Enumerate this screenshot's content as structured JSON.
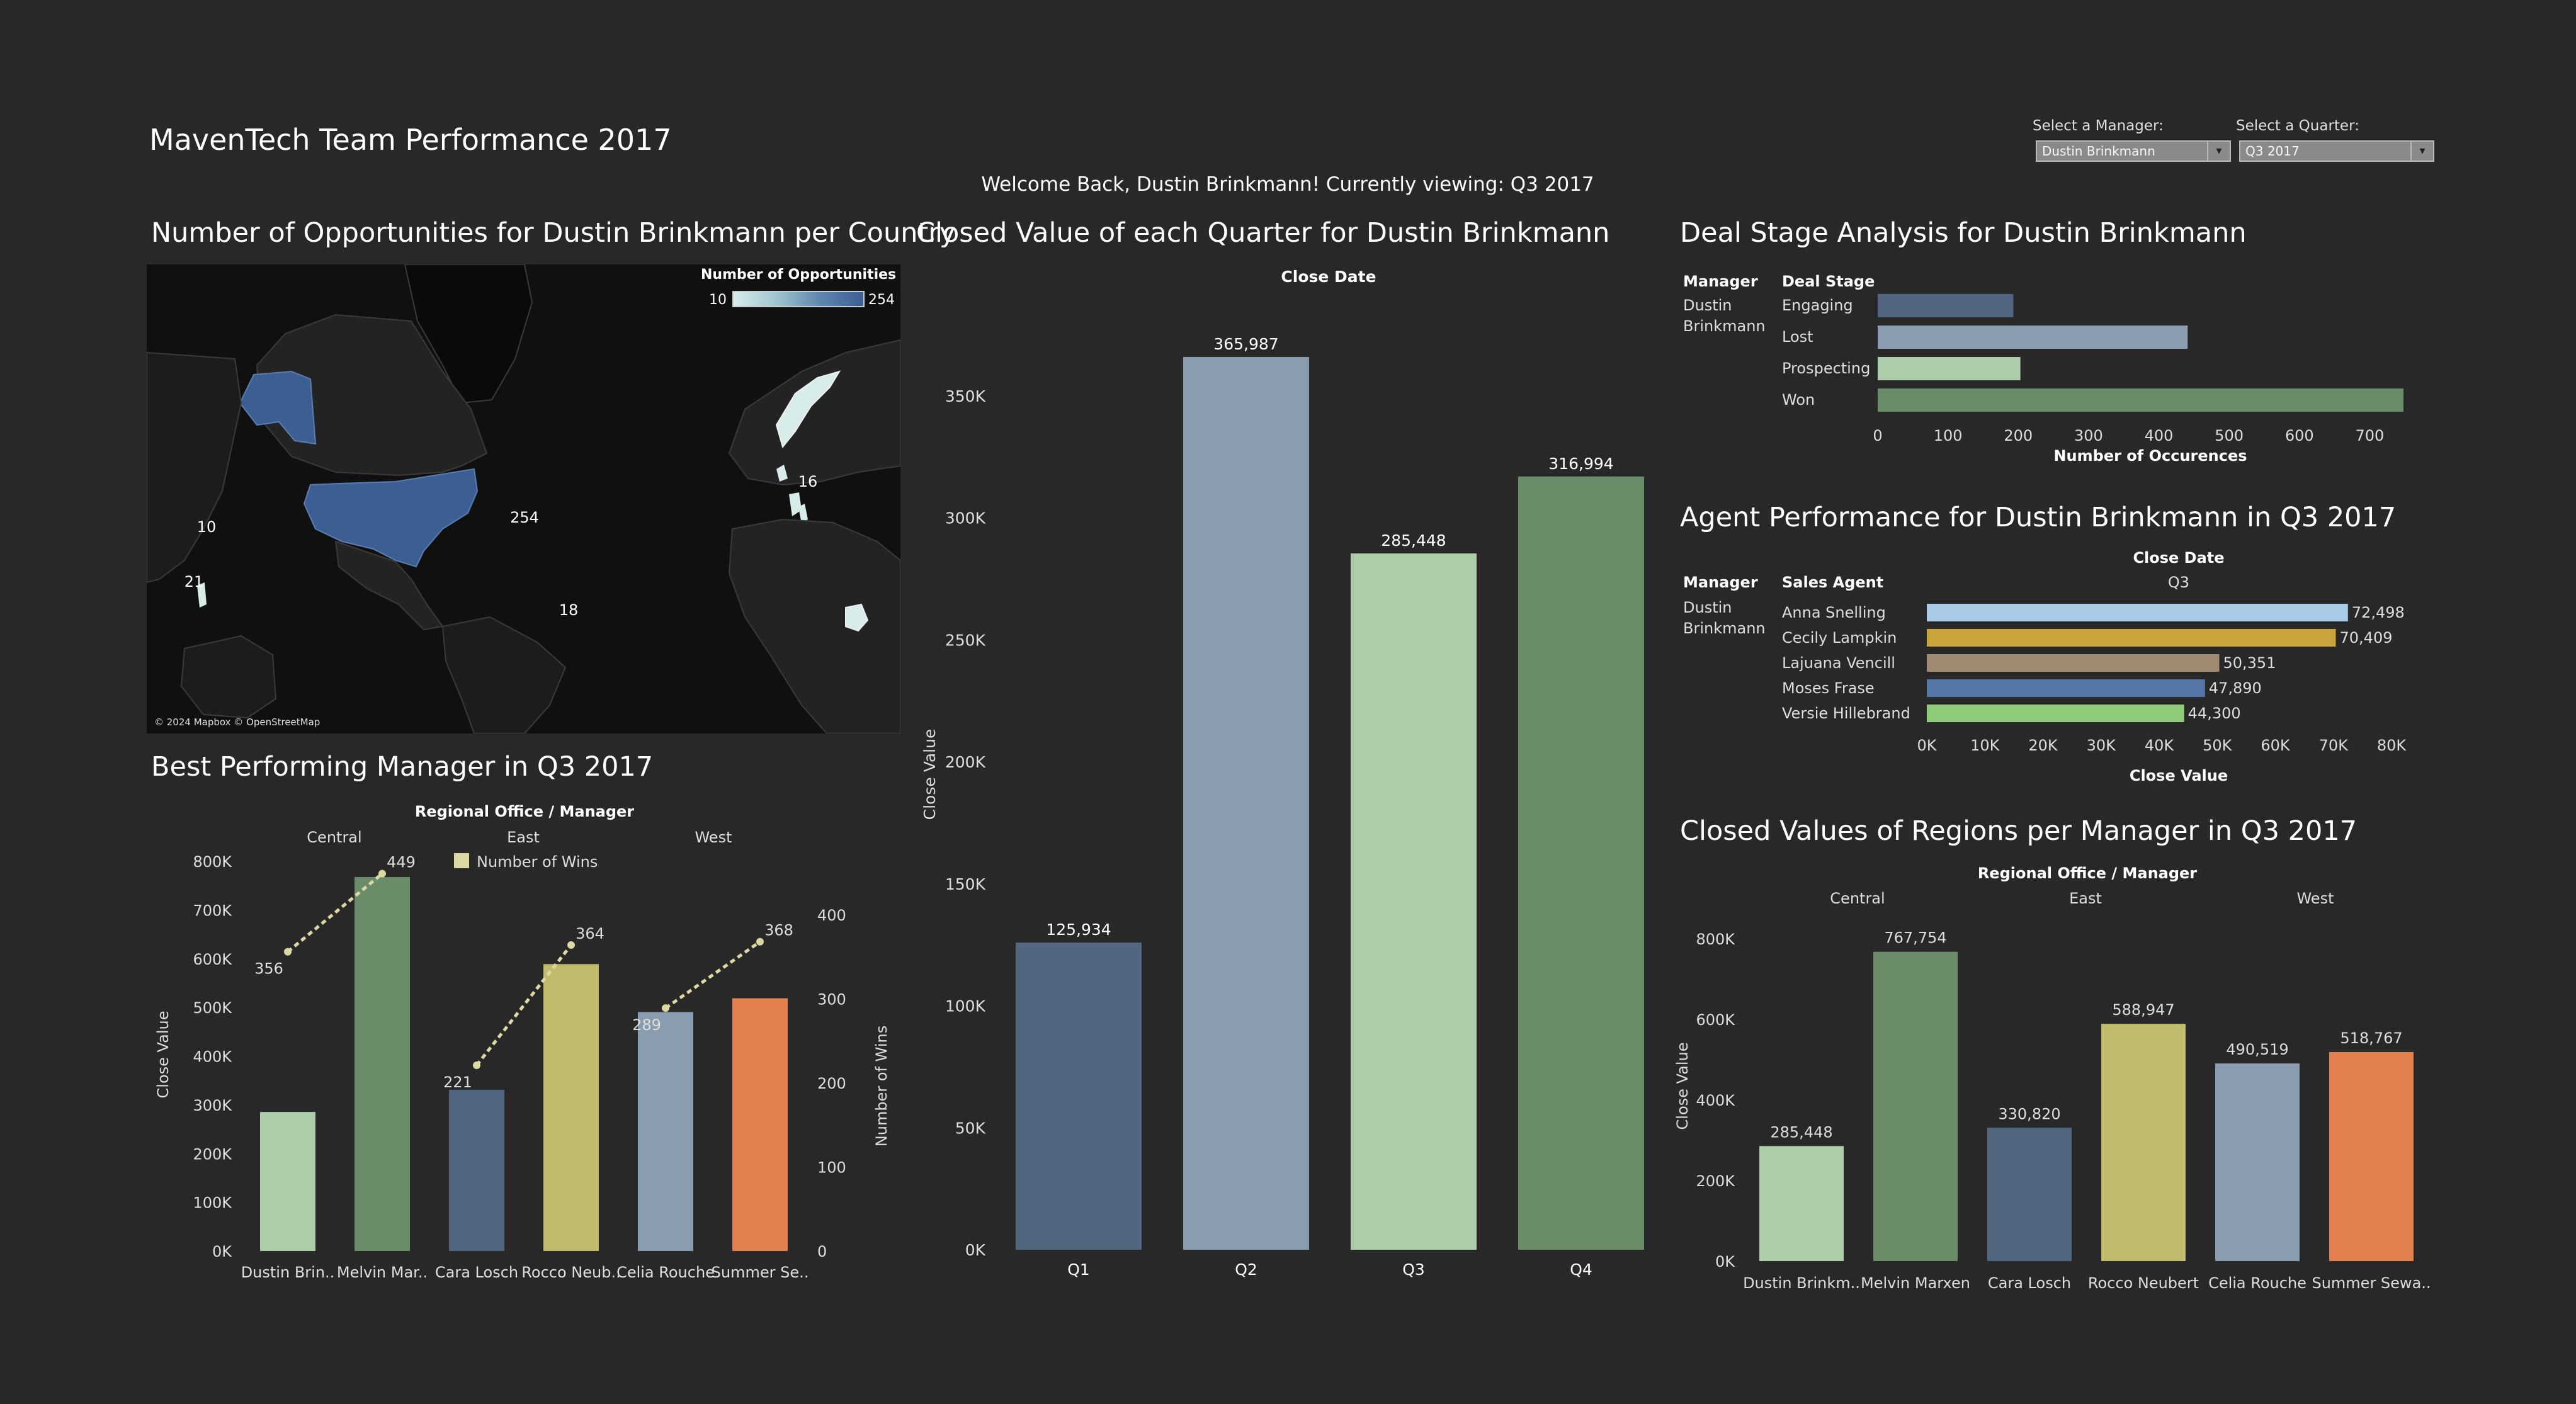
{
  "header": {
    "title": "MavenTech Team Performance 2017",
    "welcome": "Welcome Back, Dustin Brinkmann! Currently viewing:  Q3 2017"
  },
  "controls": {
    "manager_label": "Select a Manager:",
    "manager_value": "Dustin Brinkmann",
    "quarter_label": "Select a Quarter:",
    "quarter_value": "Q3 2017"
  },
  "colors": {
    "background": "#282828",
    "sage_light": "#acccaa",
    "sage_dark": "#6a8c69",
    "slate": "#52667f",
    "steel": "#8a9db0",
    "olive": "#c0bc6c",
    "orange": "#e4804d",
    "map_fill": "#3c5e93"
  },
  "map": {
    "title": "Number of Opportunities for Dustin Brinkmann per Country",
    "legend_title": "Number of Opportunities",
    "legend_min": "10",
    "legend_max": "254",
    "labels": [
      "254",
      "10",
      "21",
      "18",
      "16"
    ],
    "attribution": "© 2024 Mapbox © OpenStreetMap"
  },
  "panels": {
    "quarter_title": "Closed Value of each Quarter for Dustin Brinkmann",
    "deal_title": "Deal Stage Analysis for Dustin Brinkmann",
    "agent_title": "Agent Performance for Dustin Brinkmann in Q3 2017",
    "best_title": "Best Performing Manager in Q3 2017",
    "regions_title": "Closed Values of Regions per Manager in Q3 2017"
  },
  "chart_data": [
    {
      "id": "quarters",
      "type": "bar",
      "title": "Closed Value of each Quarter for Dustin Brinkmann",
      "header": "Close Date",
      "ylabel": "Close Value",
      "categories": [
        "Q1",
        "Q2",
        "Q3",
        "Q4"
      ],
      "values": [
        125934,
        365987,
        285448,
        316994
      ],
      "value_labels": [
        "125,934",
        "365,987",
        "285,448",
        "316,994"
      ],
      "colors": [
        "#52667f",
        "#8a9db0",
        "#acccaa",
        "#6a8c69"
      ],
      "ylim": [
        0,
        365987
      ],
      "yticks": [
        "0K",
        "50K",
        "100K",
        "150K",
        "200K",
        "250K",
        "300K",
        "350K"
      ]
    },
    {
      "id": "deal_stage",
      "type": "bar",
      "orientation": "horizontal",
      "title": "Deal Stage Analysis for Dustin Brinkmann",
      "row_header": "Manager",
      "row_value": [
        "Dustin",
        "Brinkmann"
      ],
      "category_header": "Deal Stage",
      "xlabel": "Number of Occurences",
      "categories": [
        "Engaging",
        "Lost",
        "Prospecting",
        "Won"
      ],
      "values": [
        193,
        441,
        203,
        748
      ],
      "colors": [
        "#52667f",
        "#8a9db0",
        "#acccaa",
        "#6a8c69"
      ],
      "xticks": [
        "0",
        "100",
        "200",
        "300",
        "400",
        "500",
        "600",
        "700"
      ],
      "xlim": [
        0,
        748
      ]
    },
    {
      "id": "agents",
      "type": "bar",
      "orientation": "horizontal",
      "title": "Agent Performance for Dustin Brinkmann in Q3 2017",
      "header": "Close Date",
      "subheader": "Q3",
      "row_header": "Manager",
      "row_value": [
        "Dustin",
        "Brinkmann"
      ],
      "category_header": "Sales Agent",
      "xlabel": "Close Value",
      "categories": [
        "Anna Snelling",
        "Cecily Lampkin",
        "Lajuana Vencill",
        "Moses Frase",
        "Versie Hillebrand"
      ],
      "values": [
        72498,
        70409,
        50351,
        47890,
        44300
      ],
      "value_labels": [
        "72,498",
        "70,409",
        "50,351",
        "47,890",
        "44,300"
      ],
      "colors": [
        "#a8cbe8",
        "#c9a43a",
        "#a08a72",
        "#5577a8",
        "#8fcc7a"
      ],
      "xticks": [
        "0K",
        "10K",
        "20K",
        "30K",
        "40K",
        "50K",
        "60K",
        "70K",
        "80K"
      ],
      "xlim": [
        0,
        80000
      ]
    },
    {
      "id": "best_manager",
      "type": "bar",
      "title": "Best Performing Manager in Q3 2017",
      "header": "Regional Office / Manager",
      "groups": [
        "Central",
        "East",
        "West"
      ],
      "categories": [
        "Dustin Brin..",
        "Melvin Mar..",
        "Cara Losch",
        "Rocco Neub..",
        "Celia Rouche",
        "Summer Se.."
      ],
      "values": [
        285448,
        767754,
        330820,
        588947,
        490519,
        518767
      ],
      "wins": [
        356,
        449,
        221,
        364,
        289,
        368
      ],
      "colors": [
        "#acccaa",
        "#6a8c69",
        "#52667f",
        "#c0bc6c",
        "#8a9db0",
        "#e4804d"
      ],
      "ylabel": "Close Value",
      "y2label": "Number of Wins",
      "legend": "Number of Wins",
      "yticks": [
        "0K",
        "100K",
        "200K",
        "300K",
        "400K",
        "500K",
        "600K",
        "700K",
        "800K"
      ],
      "y2ticks": [
        "0",
        "100",
        "200",
        "300",
        "400"
      ],
      "ylim": [
        0,
        800000
      ],
      "y2lim": [
        0,
        400
      ]
    },
    {
      "id": "regions",
      "type": "bar",
      "title": "Closed Values of Regions per Manager in Q3 2017",
      "header": "Regional Office / Manager",
      "groups": [
        "Central",
        "East",
        "West"
      ],
      "categories": [
        "Dustin Brinkm..",
        "Melvin Marxen",
        "Cara Losch",
        "Rocco Neubert",
        "Celia Rouche",
        "Summer Sewa.."
      ],
      "values": [
        285448,
        767754,
        330820,
        588947,
        490519,
        518767
      ],
      "value_labels": [
        "285,448",
        "767,754",
        "330,820",
        "588,947",
        "490,519",
        "518,767"
      ],
      "colors": [
        "#acccaa",
        "#6a8c69",
        "#52667f",
        "#c0bc6c",
        "#8a9db0",
        "#e4804d"
      ],
      "ylabel": "Close Value",
      "yticks": [
        "0K",
        "200K",
        "400K",
        "600K",
        "800K"
      ],
      "ylim": [
        0,
        800000
      ]
    }
  ]
}
